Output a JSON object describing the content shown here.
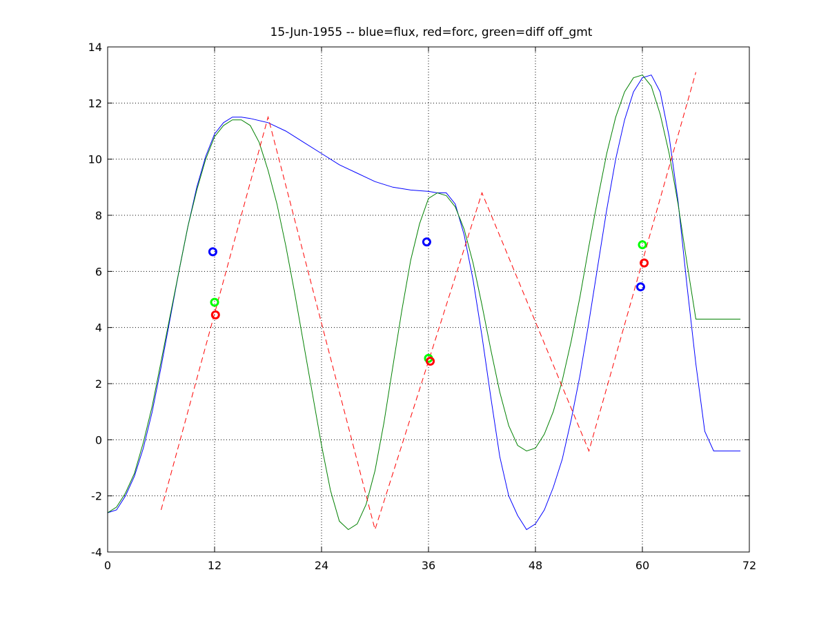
{
  "chart_data": {
    "type": "line",
    "title": "15-Jun-1955 -- blue=flux, red=forc, green=diff off_gmt",
    "xlabel": "",
    "ylabel": "",
    "xlim": [
      0,
      72
    ],
    "ylim": [
      -4,
      14
    ],
    "xticks": [
      0,
      12,
      24,
      36,
      48,
      60,
      72
    ],
    "yticks": [
      -4,
      -2,
      0,
      2,
      4,
      6,
      8,
      10,
      12,
      14
    ],
    "grid": true,
    "series": [
      {
        "color": "#0000ff",
        "style": "solid",
        "x": [
          0,
          1,
          2,
          3,
          4,
          5,
          6,
          7,
          8,
          9,
          10,
          11,
          12,
          13,
          14,
          15,
          16,
          18,
          20,
          22,
          24,
          26,
          28,
          30,
          32,
          34,
          36,
          37,
          38,
          39,
          40,
          41,
          42,
          43,
          44,
          45,
          46,
          47,
          48,
          49,
          50,
          51,
          52,
          53,
          54,
          55,
          56,
          57,
          58,
          59,
          60,
          61,
          62,
          63,
          64,
          65,
          66,
          67,
          68,
          69,
          70,
          71
        ],
        "y": [
          -2.6,
          -2.5,
          -2.0,
          -1.3,
          -0.3,
          1.0,
          2.6,
          4.3,
          6.0,
          7.6,
          9.0,
          10.1,
          10.9,
          11.3,
          11.5,
          11.5,
          11.45,
          11.3,
          11.0,
          10.6,
          10.2,
          9.8,
          9.5,
          9.2,
          9.0,
          8.9,
          8.85,
          8.8,
          8.8,
          8.4,
          7.3,
          5.7,
          3.7,
          1.5,
          -0.6,
          -2.0,
          -2.7,
          -3.2,
          -3.0,
          -2.5,
          -1.7,
          -0.7,
          0.7,
          2.3,
          4.2,
          6.2,
          8.2,
          10.0,
          11.4,
          12.4,
          12.9,
          13.0,
          12.4,
          10.8,
          8.5,
          5.5,
          2.7,
          0.3,
          -0.4,
          -0.4,
          -0.4,
          -0.4
        ]
      },
      {
        "color": "#008000",
        "style": "solid",
        "x": [
          0,
          1,
          2,
          3,
          4,
          5,
          6,
          7,
          8,
          9,
          10,
          11,
          12,
          13,
          14,
          15,
          16,
          17,
          18,
          19,
          20,
          21,
          22,
          23,
          24,
          25,
          26,
          27,
          28,
          29,
          30,
          31,
          32,
          33,
          34,
          35,
          36,
          37,
          38,
          39,
          40,
          41,
          42,
          43,
          44,
          45,
          46,
          47,
          48,
          49,
          50,
          51,
          52,
          53,
          54,
          55,
          56,
          57,
          58,
          59,
          60,
          61,
          62,
          63,
          64,
          65,
          66,
          67,
          68,
          69,
          70,
          71
        ],
        "y": [
          -2.6,
          -2.4,
          -1.9,
          -1.2,
          -0.1,
          1.2,
          2.8,
          4.4,
          6.0,
          7.6,
          8.9,
          10.0,
          10.8,
          11.2,
          11.4,
          11.4,
          11.2,
          10.6,
          9.6,
          8.4,
          6.9,
          5.2,
          3.4,
          1.6,
          -0.2,
          -1.8,
          -2.9,
          -3.2,
          -3.0,
          -2.3,
          -1.1,
          0.6,
          2.6,
          4.6,
          6.4,
          7.7,
          8.6,
          8.8,
          8.7,
          8.3,
          7.5,
          6.3,
          4.8,
          3.2,
          1.7,
          0.5,
          -0.2,
          -0.4,
          -0.3,
          0.2,
          1.0,
          2.1,
          3.5,
          5.1,
          6.9,
          8.6,
          10.2,
          11.5,
          12.4,
          12.9,
          13.0,
          12.6,
          11.6,
          10.2,
          8.4,
          6.3,
          4.3,
          4.3,
          4.3,
          4.3,
          4.3,
          4.3
        ]
      },
      {
        "color": "#ff0000",
        "style": "dashed",
        "x": [
          6,
          18,
          30,
          42,
          54,
          66
        ],
        "y": [
          -2.5,
          11.5,
          -3.2,
          8.8,
          -0.4,
          13.1
        ]
      }
    ],
    "markers": [
      {
        "color": "#0000ff",
        "x": 11.8,
        "y": 6.7
      },
      {
        "color": "#00ff00",
        "x": 12.0,
        "y": 4.9
      },
      {
        "color": "#ff0000",
        "x": 12.1,
        "y": 4.45
      },
      {
        "color": "#0000ff",
        "x": 35.8,
        "y": 7.05
      },
      {
        "color": "#00ff00",
        "x": 36.0,
        "y": 2.9
      },
      {
        "color": "#ff0000",
        "x": 36.2,
        "y": 2.8
      },
      {
        "color": "#0000ff",
        "x": 59.8,
        "y": 5.45
      },
      {
        "color": "#00ff00",
        "x": 60.0,
        "y": 6.95
      },
      {
        "color": "#ff0000",
        "x": 60.2,
        "y": 6.3
      }
    ]
  }
}
